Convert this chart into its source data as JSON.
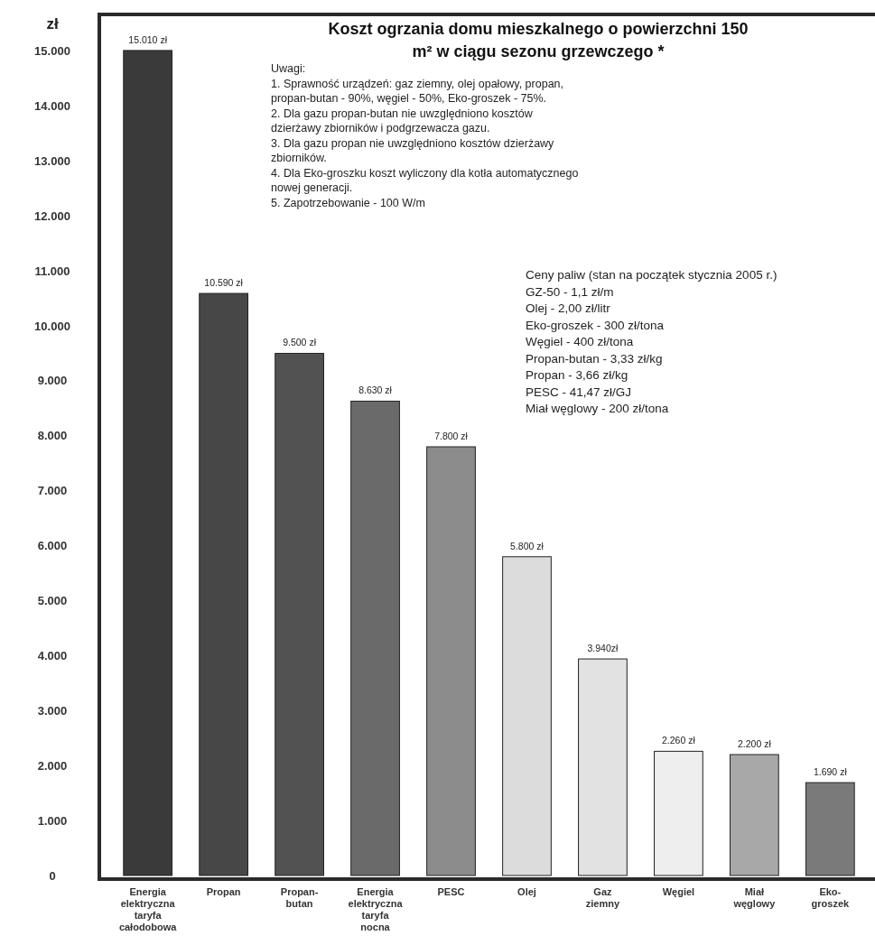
{
  "chart_data": {
    "type": "bar",
    "title": "Koszt ogrzania domu mieszkalnego o powierzchni 150 m² w ciągu sezonu grzewczego *",
    "ylabel": "zł",
    "categories": [
      "Energia elektryczna taryfa całodobowa",
      "Propan",
      "Propan-butan",
      "Energia elektryczna taryfa nocna",
      "PESC",
      "Olej",
      "Gaz ziemny",
      "Węgiel",
      "Miał węglowy",
      "Eko-groszek"
    ],
    "values": [
      15010,
      10590,
      9500,
      8630,
      7800,
      5800,
      3940,
      2260,
      2200,
      1690
    ],
    "value_labels": [
      "15.010 zł",
      "10.590 zł",
      "9.500 zł",
      "8.630 zł",
      "7.800 zł",
      "5.800 zł",
      "3.940zł",
      "2.260 zł",
      "2.200 zł",
      "1.690 zł"
    ],
    "colors": [
      "#3a3a3a",
      "#474747",
      "#525252",
      "#6a6a6a",
      "#8c8c8c",
      "#dcdcdc",
      "#e2e2e2",
      "#eeeeee",
      "#a8a8a8",
      "#7a7a7a"
    ],
    "ylim": [
      0,
      15600
    ],
    "yticks": [
      {
        "value": 0,
        "label": "0"
      },
      {
        "value": 1000,
        "label": "1.000"
      },
      {
        "value": 2000,
        "label": "2.000"
      },
      {
        "value": 3000,
        "label": "3.000"
      },
      {
        "value": 4000,
        "label": "4.000"
      },
      {
        "value": 5000,
        "label": "5.000"
      },
      {
        "value": 6000,
        "label": "6.000"
      },
      {
        "value": 7000,
        "label": "7.000"
      },
      {
        "value": 8000,
        "label": "8.000"
      },
      {
        "value": 9000,
        "label": "9.000"
      },
      {
        "value": 10000,
        "label": "10.000"
      },
      {
        "value": 11000,
        "label": "11.000"
      },
      {
        "value": 12000,
        "label": "12.000"
      },
      {
        "value": 13000,
        "label": "13.000"
      },
      {
        "value": 14000,
        "label": "14.000"
      },
      {
        "value": 15000,
        "label": "15.000"
      }
    ],
    "annotations": [
      "Uwagi:\n1. Sprawność urządzeń: gaz ziemny, olej opałowy, propan,\npropan-butan - 90%,  węgiel - 50%, Eko-groszek - 75%.\n2. Dla gazu propan-butan nie uwzględniono kosztów\ndzierżawy zbiorników i podgrzewacza gazu.\n3. Dla gazu propan nie uwzględniono kosztów dzierżawy\nzbiorników.\n4. Dla Eko-groszku koszt wyliczony dla kotła automatycznego\nnowej generacji.\n5. Zapotrzebowanie - 100 W/m",
      "Ceny paliw (stan na początek stycznia 2005 r.)\nGZ-50 - 1,1 zł/m\nOlej - 2,00 zł/litr\nEko-groszek - 300 zł/tona\nWęgiel - 400 zł/tona\nPropan-butan - 3,33 zł/kg\nPropan - 3,66 zł/kg\nPESC - 41,47 zł/GJ\nMiał węglowy - 200 zł/tona"
    ]
  }
}
